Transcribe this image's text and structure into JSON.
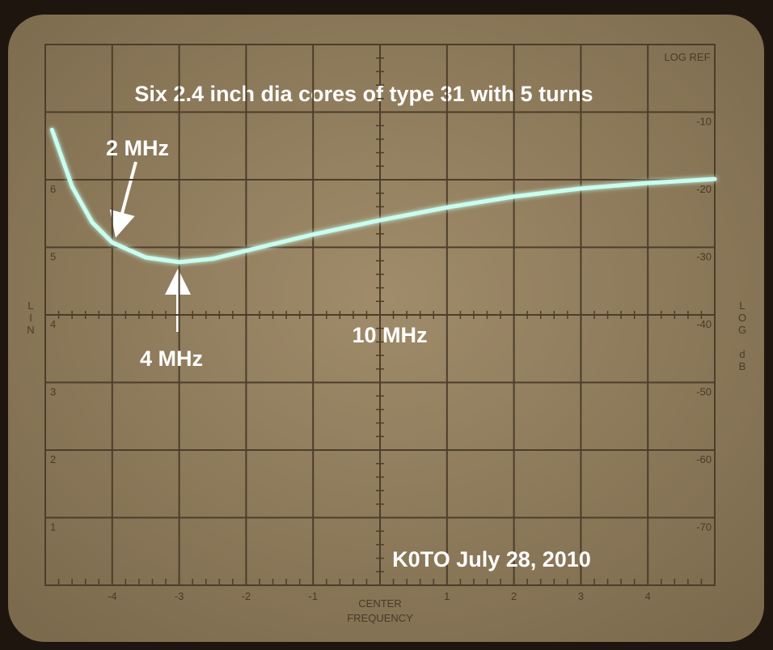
{
  "chart_data": {
    "type": "line",
    "title": "Six 2.4 inch dia cores of type 31 with 5 turns",
    "annotations": [
      "2 MHz",
      "4 MHz",
      "10 MHz",
      "K0TO July 28, 2010"
    ],
    "top_right_label": "LOG REF",
    "x_axis_label": [
      "CENTER",
      "FREQUENCY"
    ],
    "ylabel": "LOG dB",
    "y2label": "LIN",
    "x": [
      -4.9,
      -4.6,
      -4.3,
      -4,
      -3.5,
      -3,
      -2.5,
      -2,
      -1,
      0,
      1,
      2,
      3,
      4,
      5
    ],
    "values": [
      -12.6,
      -21,
      -26.3,
      -29.3,
      -31.5,
      -32.2,
      -31.7,
      -30.5,
      -28.1,
      -26,
      -24.1,
      -22.5,
      -21.3,
      -20.5,
      -19.9
    ],
    "color": "#c8fff0",
    "xlim": [
      -5,
      5
    ],
    "xticks": [
      -4,
      -3,
      -2,
      -1,
      1,
      2,
      3,
      4
    ],
    "ylim": [
      -80,
      0
    ],
    "yticks": [
      -10,
      -20,
      -30,
      -40,
      -50,
      -60,
      -70
    ],
    "y2lim": [
      0,
      8
    ],
    "y2ticks": [
      1,
      2,
      3,
      4,
      5,
      6
    ],
    "grid": true
  }
}
